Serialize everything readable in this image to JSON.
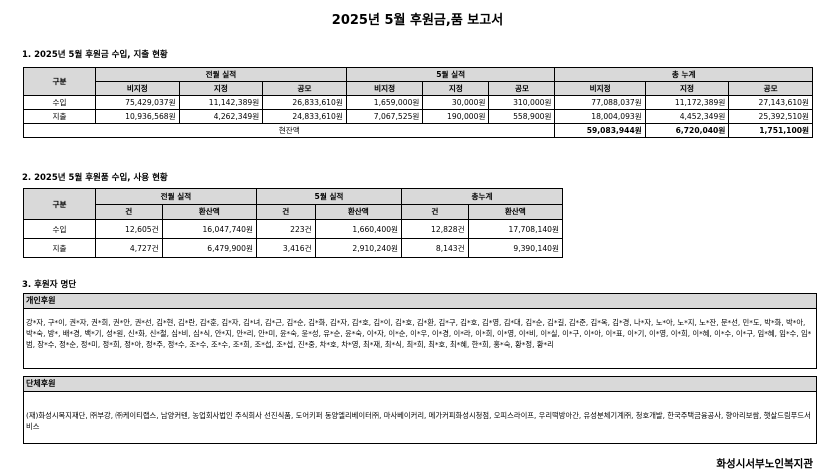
{
  "title": "2025년 5월 후원금,품 보고서",
  "section1": {
    "heading": "1. 2025년 5월 후원금 수입, 지출 현황",
    "col_gubun": "구분",
    "groups": [
      "전월 실적",
      "5월 실적",
      "총 누계"
    ],
    "subcols": [
      "비지정",
      "지정",
      "공모"
    ],
    "rows": [
      {
        "label": "수입",
        "values": [
          "75,429,037원",
          "11,142,389원",
          "26,833,610원",
          "1,659,000원",
          "30,000원",
          "310,000원",
          "77,088,037원",
          "11,172,389원",
          "27,143,610원"
        ]
      },
      {
        "label": "지출",
        "values": [
          "10,936,568원",
          "4,262,349원",
          "24,833,610원",
          "7,067,525원",
          "190,000원",
          "558,900원",
          "18,004,093원",
          "4,452,349원",
          "25,392,510원"
        ]
      }
    ],
    "balance_label": "현잔액",
    "balance_values": [
      "59,083,944원",
      "6,720,040원",
      "1,751,100원"
    ]
  },
  "section2": {
    "heading": "2. 2025년 5월 후원품 수입, 사용 현황",
    "col_gubun": "구분",
    "groups": [
      "전월 실적",
      "5월 실적",
      "총누계"
    ],
    "subcols": [
      "건",
      "환산액"
    ],
    "rows": [
      {
        "label": "수입",
        "values": [
          "12,605건",
          "16,047,740원",
          "223건",
          "1,660,400원",
          "12,828건",
          "17,708,140원"
        ]
      },
      {
        "label": "지출",
        "values": [
          "4,727건",
          "6,479,900원",
          "3,416건",
          "2,910,240원",
          "8,143건",
          "9,390,140원"
        ]
      }
    ]
  },
  "section3": {
    "heading": "3. 후원자 명단",
    "individual_header": "개인후원",
    "individual_text": "강*자, 구*이, 권*자, 권*희, 권*안, 권*선, 김*현, 김*란, 김*훈, 김*자, 김*녀, 김*근, 김*순, 김*화, 김*자, 김*호, 김*이, 김*호, 김*환, 김*구, 김*호, 김*영, 김*대, 김*순, 김*길, 김*준, 김*옥, 김*경, 나*자, 노*아, 노*지, 노*잔, 문*선, 민*도, 박*화, 박*아, 박*숙, 방*, 배*경, 백*기, 성*원, 신*화, 신*철, 심*비, 심*식, 안*지, 안*리, 안*미, 윤*숙, 윤*성, 유*순, 윤*숙, 이*자, 이*순, 이*우, 이*경, 이*라, 이*희, 이*영, 이*비, 이*실, 이*구, 이*아, 이*표, 이*기, 이*영, 이*희, 이*혜, 이*수, 이*구, 임*혜, 임*수, 임*범, 장*수, 정*순, 정*미, 정*희, 정*아, 정*주, 정*수, 조*수, 조*수, 조*희, 조*섭, 조*섭, 진*중, 차*호, 차*영, 최*재, 최*식, 최*희, 최*호, 최*혜, 한*희, 홍*숙, 황*정, 황*리",
    "group_header": "단체후원",
    "group_text": "(재)화성시복지재단, ㈜부강, ㈜케이티랩스, 남양커텐, 농업회사법인 주식회사 선진식품, 도어키퍼 동양엘리베이터㈜, 마사베이커리, 메가커피화성시청점, 오피스라이프, 우리떡방아간, 유성분체기계㈜, 청호개발, 한국주택금융공사, 향아리보쌈, 햇살드림푸드서비스"
  },
  "footer": "화성시서부노인복지관"
}
